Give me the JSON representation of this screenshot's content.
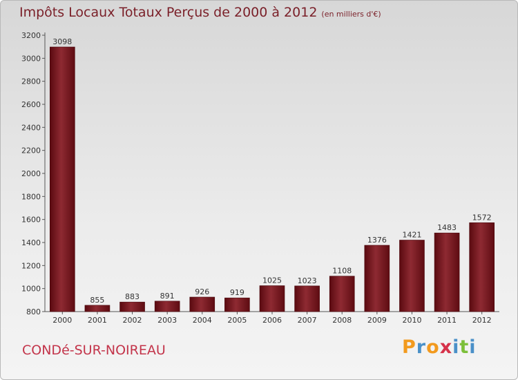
{
  "header": {
    "title": "Impôts Locaux Totaux Perçus de 2000 à 2012",
    "unit": "(en milliers d'€)"
  },
  "footer": {
    "commune": "CONDé-SUR-NOIREAU",
    "brand_letters": [
      "P",
      "r",
      "o",
      "x",
      "i",
      "t",
      "i"
    ],
    "brand_colors": [
      "#f29a1e",
      "#4a90c8",
      "#f29a1e",
      "#d6324a",
      "#4a90c8",
      "#7cbf3a",
      "#4a90c8"
    ]
  },
  "chart_data": {
    "type": "bar",
    "categories": [
      "2000",
      "2001",
      "2002",
      "2003",
      "2004",
      "2005",
      "2006",
      "2007",
      "2008",
      "2009",
      "2010",
      "2011",
      "2012"
    ],
    "values": [
      3098,
      855,
      883,
      891,
      926,
      919,
      1025,
      1023,
      1108,
      1376,
      1421,
      1483,
      1572
    ],
    "data_labels": [
      "3098",
      "855",
      "883",
      "891",
      "926",
      "919",
      "1025",
      "1023",
      "1108",
      "1376",
      "1421",
      "1483",
      "1572"
    ],
    "yticks": [
      800,
      1000,
      1200,
      1400,
      1600,
      1800,
      2000,
      2200,
      2400,
      2600,
      2800,
      3000,
      3200
    ],
    "ylim": [
      800,
      3200
    ],
    "grid": false,
    "bar_color": "#6e0f15"
  }
}
